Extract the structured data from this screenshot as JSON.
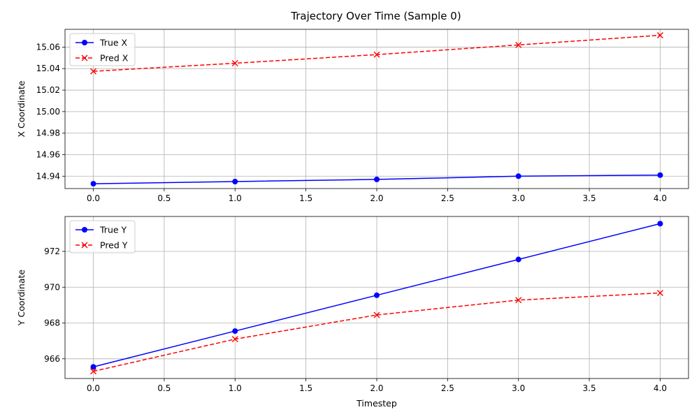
{
  "chart_data": [
    {
      "type": "line",
      "title": "Trajectory Over Time (Sample 0)",
      "xlabel": "",
      "ylabel": "X Coordinate",
      "xlim": [
        -0.2,
        4.2
      ],
      "ylim": [
        14.9285,
        15.0765
      ],
      "xticks": [
        0.0,
        0.5,
        1.0,
        1.5,
        2.0,
        2.5,
        3.0,
        3.5,
        4.0
      ],
      "xtick_labels": [
        "0.0",
        "0.5",
        "1.0",
        "1.5",
        "2.0",
        "2.5",
        "3.0",
        "3.5",
        "4.0"
      ],
      "yticks": [
        14.94,
        14.96,
        14.98,
        15.0,
        15.02,
        15.04,
        15.06
      ],
      "ytick_labels": [
        "14.94",
        "14.96",
        "14.98",
        "15.00",
        "15.02",
        "15.04",
        "15.06"
      ],
      "grid": true,
      "legend_position": "upper-left",
      "x": [
        0,
        1,
        2,
        3,
        4
      ],
      "series": [
        {
          "name": "True X",
          "values": [
            14.933,
            14.935,
            14.937,
            14.94,
            14.941
          ],
          "color": "#0000ff",
          "dash": "solid",
          "marker": "circle"
        },
        {
          "name": "Pred X",
          "values": [
            15.0375,
            15.045,
            15.053,
            15.062,
            15.071
          ],
          "color": "#ff0000",
          "dash": "dashed",
          "marker": "x"
        }
      ]
    },
    {
      "type": "line",
      "title": "",
      "xlabel": "Timestep",
      "ylabel": "Y Coordinate",
      "xlim": [
        -0.2,
        4.2
      ],
      "ylim": [
        964.9,
        973.95
      ],
      "xticks": [
        0.0,
        0.5,
        1.0,
        1.5,
        2.0,
        2.5,
        3.0,
        3.5,
        4.0
      ],
      "xtick_labels": [
        "0.0",
        "0.5",
        "1.0",
        "1.5",
        "2.0",
        "2.5",
        "3.0",
        "3.5",
        "4.0"
      ],
      "yticks": [
        966,
        968,
        970,
        972
      ],
      "ytick_labels": [
        "966",
        "968",
        "970",
        "972"
      ],
      "grid": true,
      "legend_position": "upper-left",
      "x": [
        0,
        1,
        2,
        3,
        4
      ],
      "series": [
        {
          "name": "True Y",
          "values": [
            965.55,
            967.55,
            969.55,
            971.55,
            973.55
          ],
          "color": "#0000ff",
          "dash": "solid",
          "marker": "circle"
        },
        {
          "name": "Pred Y",
          "values": [
            965.3,
            967.1,
            968.45,
            969.28,
            969.68
          ],
          "color": "#ff0000",
          "dash": "dashed",
          "marker": "x"
        }
      ]
    }
  ]
}
